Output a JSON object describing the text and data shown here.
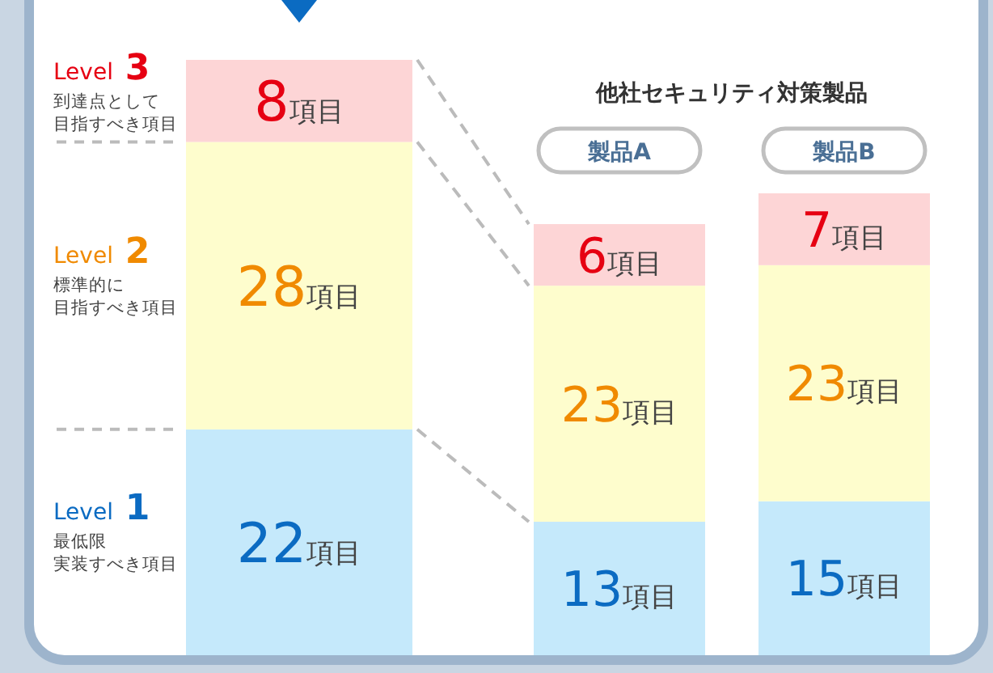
{
  "chart_data": {
    "type": "bar",
    "stacked": true,
    "categories": [
      null,
      "製品A",
      "製品B"
    ],
    "series": [
      {
        "name": "Level 1",
        "color": "#c5e9fb",
        "values": [
          22,
          13,
          15
        ],
        "value_labels": [
          "22項目",
          "13項目",
          "15項目"
        ]
      },
      {
        "name": "Level 2",
        "color": "#fefdcd",
        "values": [
          28,
          23,
          23
        ],
        "value_labels": [
          "28項目",
          "23項目",
          "23項目"
        ]
      },
      {
        "name": "Level 3",
        "color": "#fdd5d6",
        "values": [
          8,
          6,
          7
        ],
        "value_labels": [
          "8項目",
          "6項目",
          "7項目"
        ]
      }
    ],
    "annotations": [
      "他社セキュリティ対策製品",
      "最低限",
      "実装すべき項目",
      "標準的に",
      "目指すべき項目",
      "到達点として",
      "目指すべき項目"
    ]
  }
}
